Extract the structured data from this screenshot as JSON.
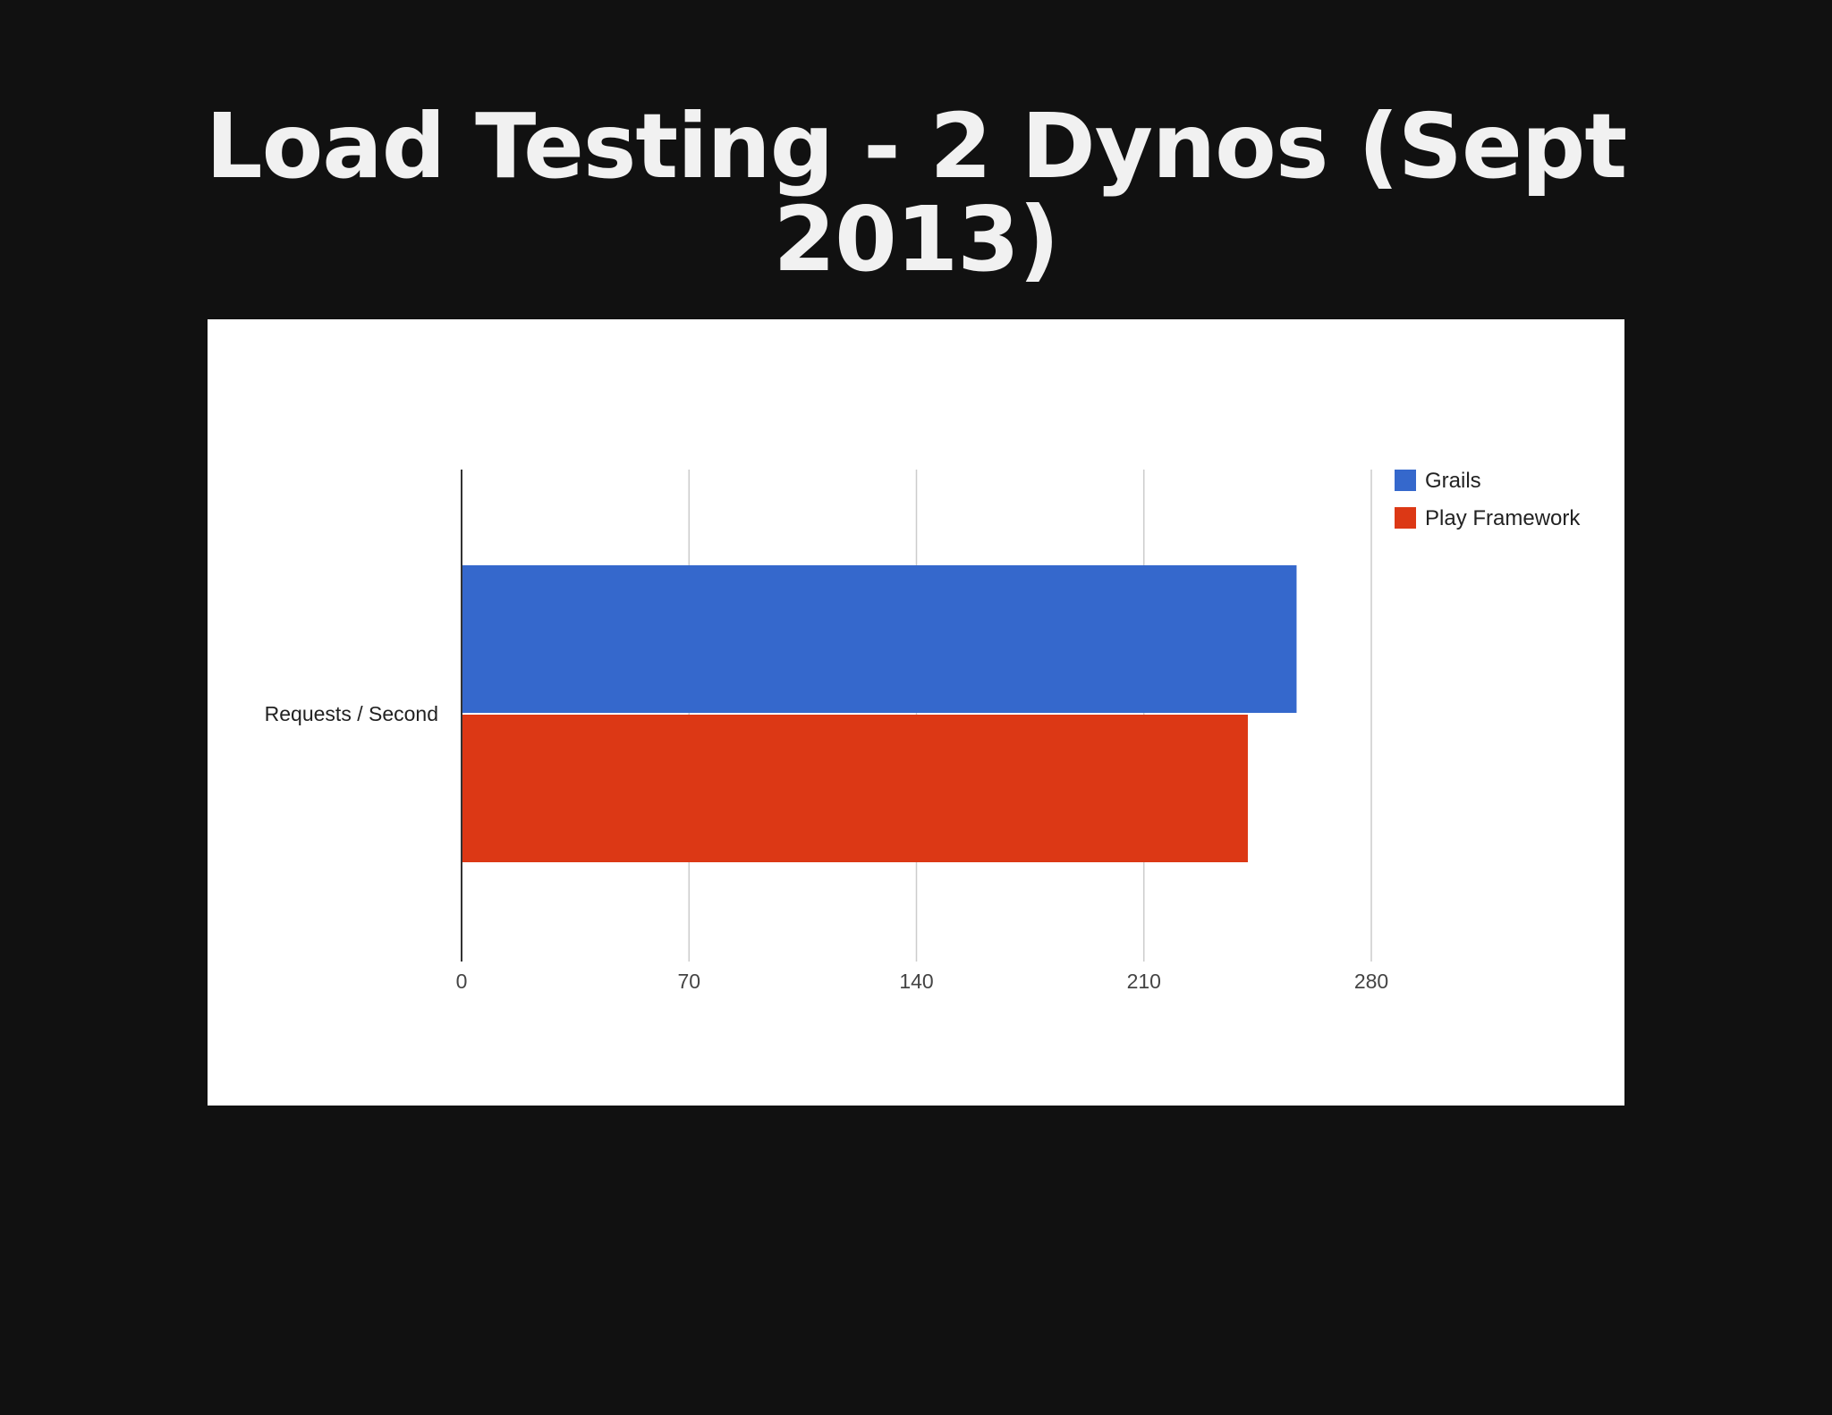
{
  "slide": {
    "title": "Load Testing - 2 Dynos (Sept 2013)"
  },
  "chart_data": {
    "type": "bar",
    "orientation": "horizontal",
    "categories": [
      "Requests / Second"
    ],
    "series": [
      {
        "name": "Grails",
        "values": [
          257
        ],
        "color": "#3568CC"
      },
      {
        "name": "Play Framework",
        "values": [
          242
        ],
        "color": "#DC3815"
      }
    ],
    "x_ticks": [
      "0",
      "70",
      "140",
      "210",
      "280"
    ],
    "xlim": [
      0,
      280
    ],
    "grid": true,
    "legend_position": "right"
  }
}
